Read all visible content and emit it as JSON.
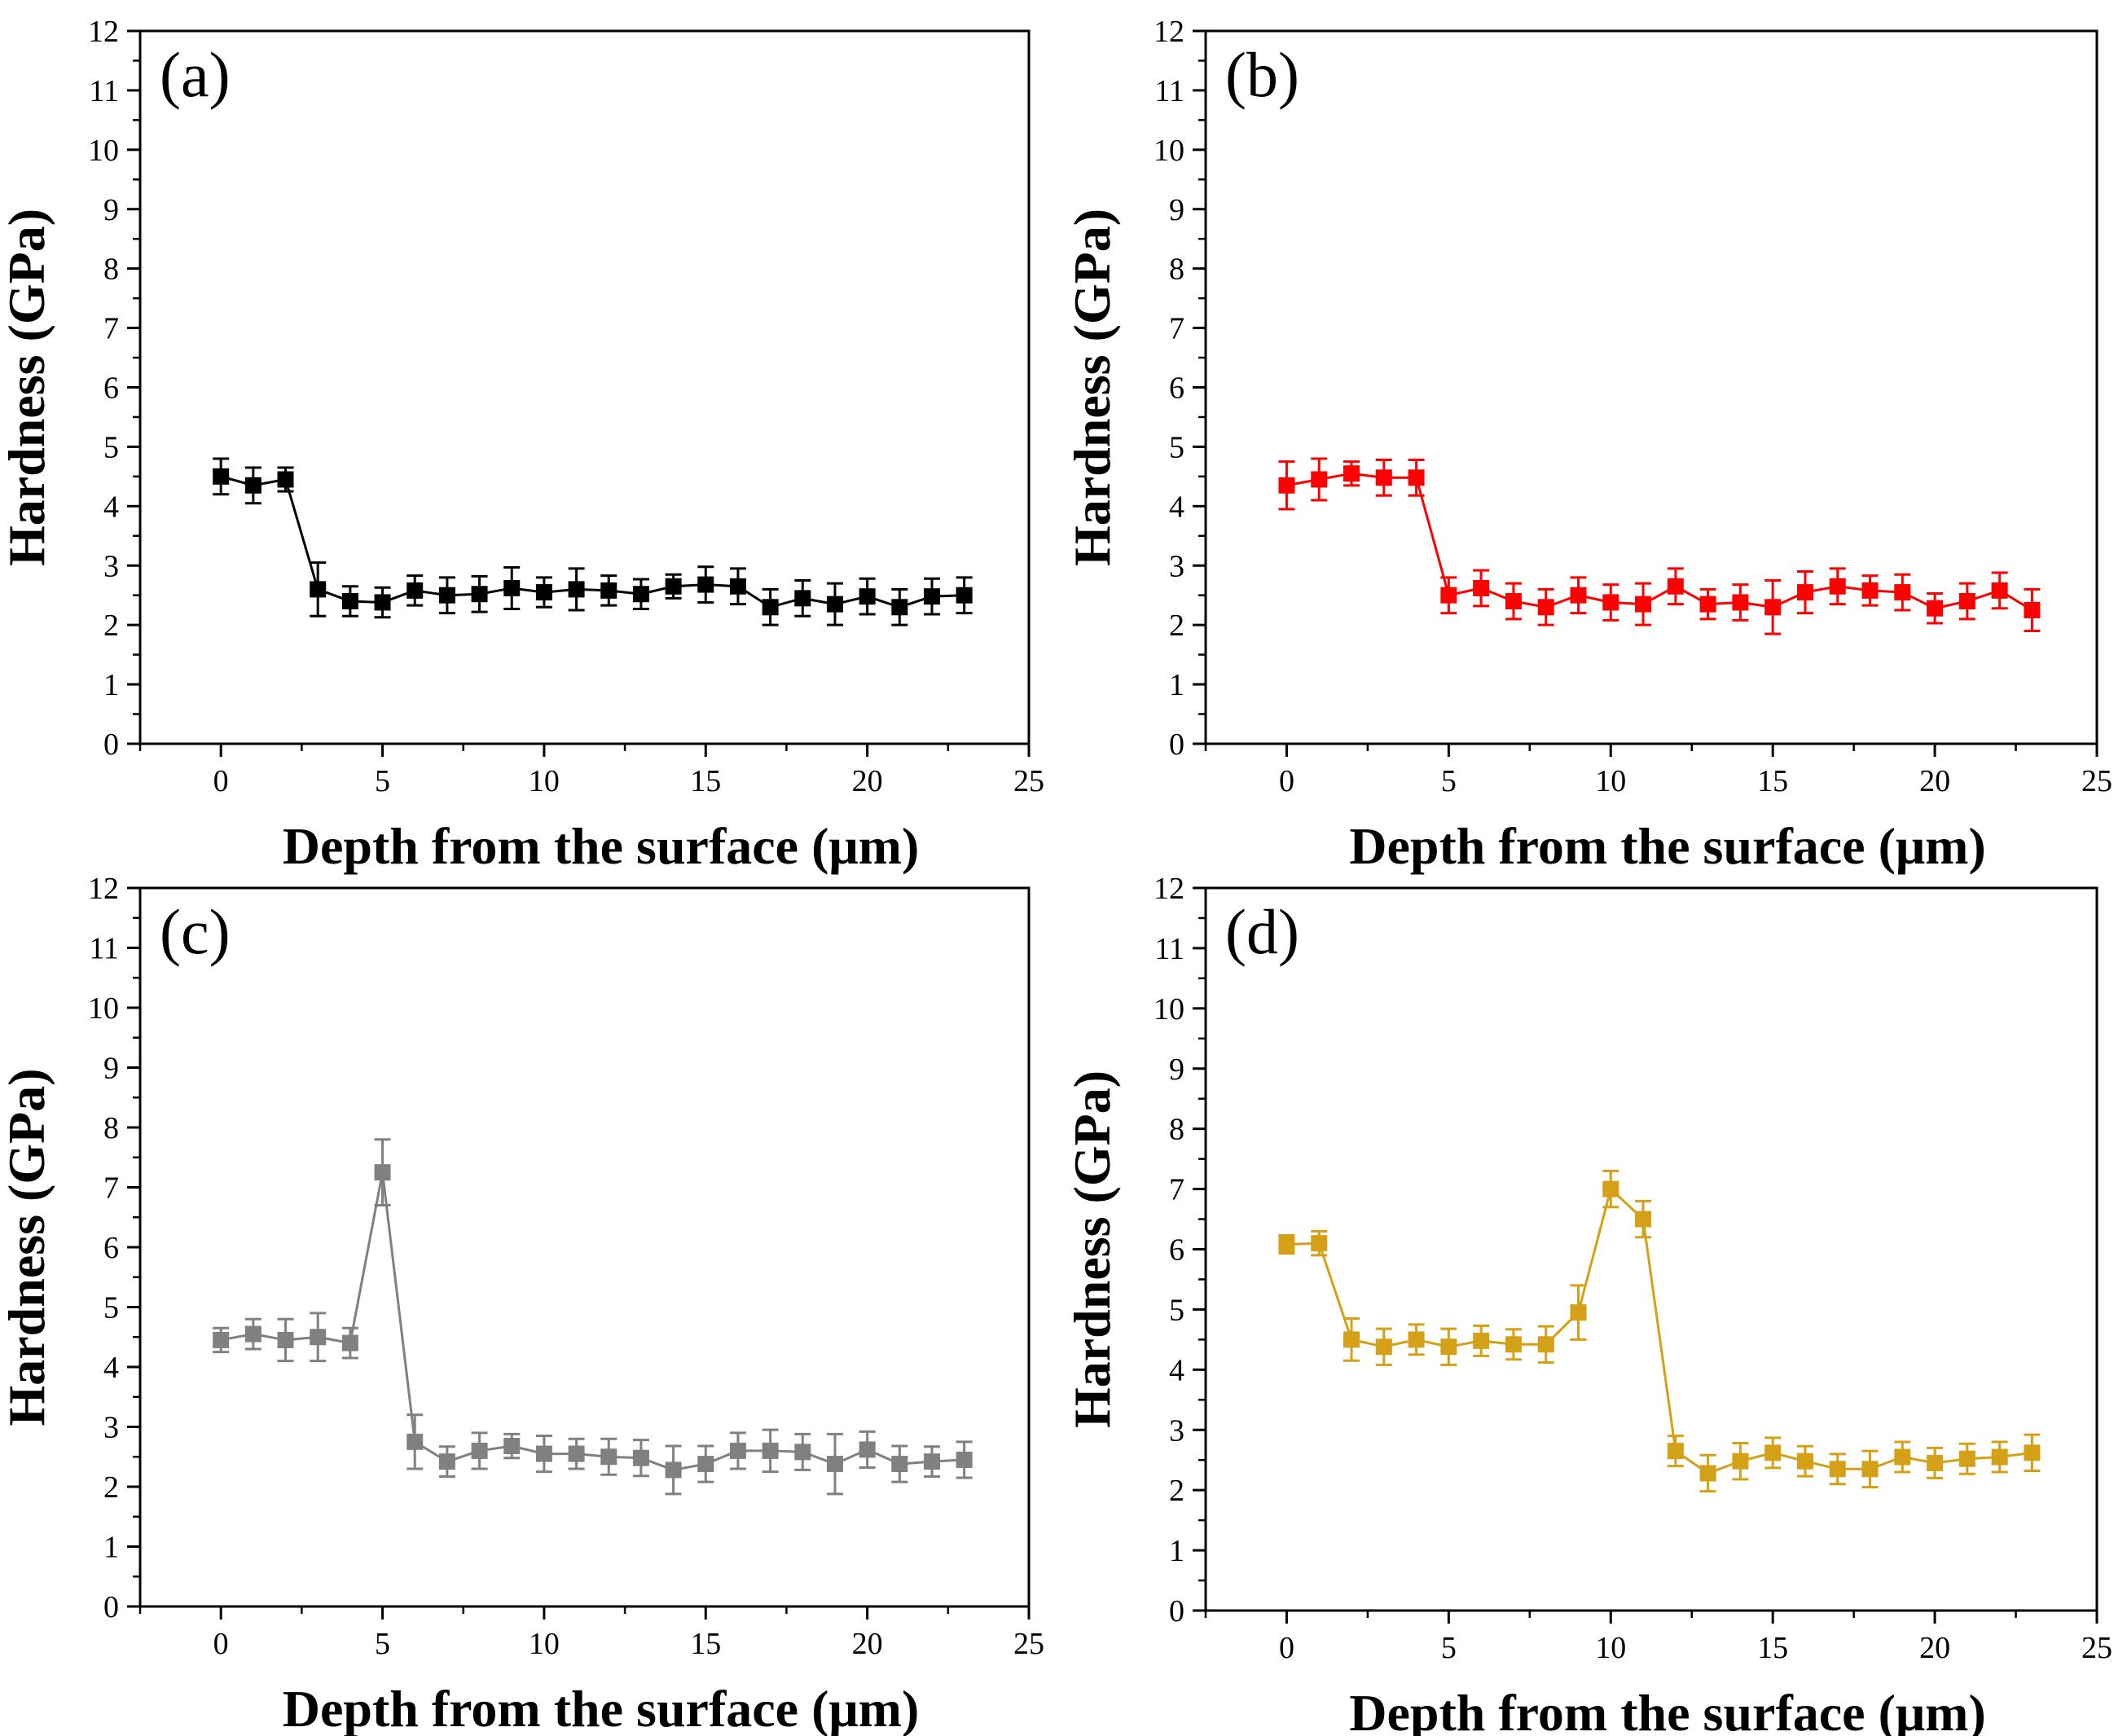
{
  "chart_data": [
    {
      "type": "line",
      "panel_label": "(a)",
      "color": "#000000",
      "xlabel": "Depth from the surface (μm)",
      "ylabel": "Hardness (GPa)",
      "xlim": [
        -2.5,
        25
      ],
      "ylim": [
        0,
        12
      ],
      "xticks": [
        "0",
        "5",
        "10",
        "15",
        "20",
        "25"
      ],
      "yticks": [
        "0",
        "1",
        "2",
        "3",
        "4",
        "5",
        "6",
        "7",
        "8",
        "9",
        "10",
        "11",
        "12"
      ],
      "x": [
        0,
        1,
        2,
        3,
        4,
        5,
        6,
        7,
        8,
        9,
        10,
        11,
        12,
        13,
        14,
        15,
        16,
        17,
        18,
        19,
        20,
        21,
        22,
        23
      ],
      "y": [
        4.5,
        4.35,
        4.45,
        2.6,
        2.4,
        2.38,
        2.58,
        2.5,
        2.52,
        2.62,
        2.55,
        2.6,
        2.58,
        2.52,
        2.65,
        2.68,
        2.65,
        2.3,
        2.45,
        2.35,
        2.48,
        2.3,
        2.48,
        2.5
      ],
      "err": [
        0.3,
        0.3,
        0.2,
        0.45,
        0.25,
        0.25,
        0.25,
        0.3,
        0.3,
        0.35,
        0.25,
        0.35,
        0.25,
        0.25,
        0.2,
        0.3,
        0.3,
        0.3,
        0.3,
        0.35,
        0.3,
        0.3,
        0.3,
        0.3
      ]
    },
    {
      "type": "line",
      "panel_label": "(b)",
      "color": "#ff0000",
      "xlabel": "Depth from the surface (μm)",
      "ylabel": "Hardness (GPa)",
      "xlim": [
        -2.5,
        25
      ],
      "ylim": [
        0,
        12
      ],
      "xticks": [
        "0",
        "5",
        "10",
        "15",
        "20",
        "25"
      ],
      "yticks": [
        "0",
        "1",
        "2",
        "3",
        "4",
        "5",
        "6",
        "7",
        "8",
        "9",
        "10",
        "11",
        "12"
      ],
      "x": [
        0,
        1,
        2,
        3,
        4,
        5,
        6,
        7,
        8,
        9,
        10,
        11,
        12,
        13,
        14,
        15,
        16,
        17,
        18,
        19,
        20,
        21,
        22,
        23
      ],
      "y": [
        4.35,
        4.45,
        4.55,
        4.48,
        4.48,
        2.5,
        2.62,
        2.4,
        2.3,
        2.5,
        2.38,
        2.35,
        2.65,
        2.35,
        2.38,
        2.3,
        2.55,
        2.65,
        2.58,
        2.55,
        2.28,
        2.4,
        2.58,
        2.25
      ],
      "err": [
        0.4,
        0.35,
        0.2,
        0.3,
        0.3,
        0.3,
        0.3,
        0.3,
        0.3,
        0.3,
        0.3,
        0.35,
        0.3,
        0.25,
        0.3,
        0.45,
        0.35,
        0.3,
        0.25,
        0.3,
        0.25,
        0.3,
        0.3,
        0.35
      ]
    },
    {
      "type": "line",
      "panel_label": "(c)",
      "color": "#808080",
      "xlabel": "Depth from the surface (μm)",
      "ylabel": "Hardness (GPa)",
      "xlim": [
        -2.5,
        25
      ],
      "ylim": [
        0,
        12
      ],
      "xticks": [
        "0",
        "5",
        "10",
        "15",
        "20",
        "25"
      ],
      "yticks": [
        "0",
        "1",
        "2",
        "3",
        "4",
        "5",
        "6",
        "7",
        "8",
        "9",
        "10",
        "11",
        "12"
      ],
      "x": [
        0,
        1,
        2,
        3,
        4,
        5,
        6,
        7,
        8,
        9,
        10,
        11,
        12,
        13,
        14,
        15,
        16,
        17,
        18,
        19,
        20,
        21,
        22,
        23
      ],
      "y": [
        4.45,
        4.55,
        4.45,
        4.5,
        4.4,
        7.25,
        2.75,
        2.42,
        2.6,
        2.68,
        2.55,
        2.55,
        2.5,
        2.48,
        2.28,
        2.38,
        2.6,
        2.6,
        2.58,
        2.38,
        2.62,
        2.38,
        2.42,
        2.45
      ],
      "err": [
        0.2,
        0.25,
        0.35,
        0.4,
        0.25,
        0.55,
        0.45,
        0.25,
        0.3,
        0.2,
        0.3,
        0.25,
        0.3,
        0.3,
        0.4,
        0.3,
        0.3,
        0.35,
        0.3,
        0.5,
        0.3,
        0.3,
        0.25,
        0.3
      ]
    },
    {
      "type": "line",
      "panel_label": "(d)",
      "color": "#d4a017",
      "xlabel": "Depth from the surface (μm)",
      "ylabel": "Hardness (GPa)",
      "xlim": [
        -2.5,
        25
      ],
      "ylim": [
        0,
        12
      ],
      "xticks": [
        "0",
        "5",
        "10",
        "15",
        "20",
        "25"
      ],
      "yticks": [
        "0",
        "1",
        "2",
        "3",
        "4",
        "5",
        "6",
        "7",
        "8",
        "9",
        "10",
        "11",
        "12"
      ],
      "x": [
        0,
        1,
        2,
        3,
        4,
        5,
        6,
        7,
        8,
        9,
        10,
        11,
        12,
        13,
        14,
        15,
        16,
        17,
        18,
        19,
        20,
        21,
        22,
        23
      ],
      "y": [
        6.08,
        6.1,
        4.5,
        4.38,
        4.5,
        4.38,
        4.48,
        4.42,
        4.42,
        4.95,
        7.0,
        6.5,
        2.65,
        2.28,
        2.48,
        2.62,
        2.48,
        2.35,
        2.35,
        2.55,
        2.45,
        2.52,
        2.55,
        2.62
      ],
      "err": [
        0.15,
        0.2,
        0.35,
        0.3,
        0.25,
        0.3,
        0.25,
        0.25,
        0.3,
        0.45,
        0.3,
        0.3,
        0.25,
        0.3,
        0.3,
        0.25,
        0.25,
        0.25,
        0.3,
        0.25,
        0.25,
        0.25,
        0.25,
        0.3
      ]
    }
  ]
}
